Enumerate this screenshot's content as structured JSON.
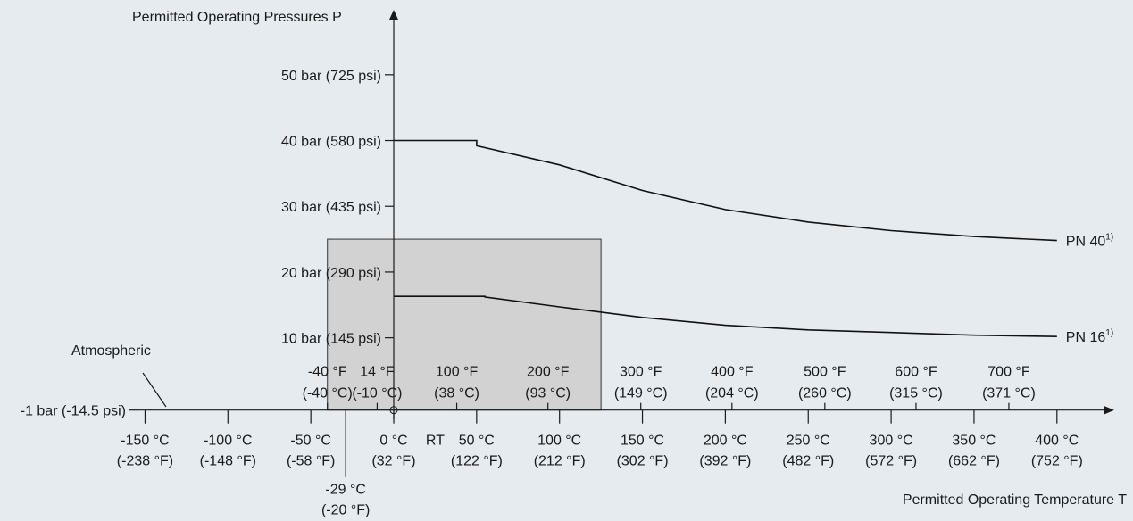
{
  "chart_data": {
    "type": "line",
    "title": "",
    "ylabel": "Permitted Operating Pressures P",
    "xlabel": "Permitted Operating Temperature T",
    "y_tick_values": [
      -1,
      10,
      20,
      30,
      40,
      50
    ],
    "y_tick_labels": [
      "-1 bar (-14.5 psi)",
      "10 bar (145 psi)",
      "20 bar (290 psi)",
      "30 bar (435 psi)",
      "40 bar (580 psi)",
      "50 bar (725 psi)"
    ],
    "x_celsius_ticks": [
      {
        "value": -150,
        "c": "-150 °C",
        "f": "(-238 °F)"
      },
      {
        "value": -100,
        "c": "-100 °C",
        "f": "(-148 °F)"
      },
      {
        "value": -50,
        "c": "-50 °C",
        "f": "(-58 °F)"
      },
      {
        "value": 0,
        "c": "0 °C",
        "f": "(32 °F)"
      },
      {
        "value": 50,
        "c": "50 °C",
        "f": "(122 °F)"
      },
      {
        "value": 100,
        "c": "100 °C",
        "f": "(212 °F)"
      },
      {
        "value": 150,
        "c": "150 °C",
        "f": "(302 °F)"
      },
      {
        "value": 200,
        "c": "200 °C",
        "f": "(392 °F)"
      },
      {
        "value": 250,
        "c": "250 °C",
        "f": "(482 °F)"
      },
      {
        "value": 300,
        "c": "300 °C",
        "f": "(572 °F)"
      },
      {
        "value": 350,
        "c": "350 °C",
        "f": "(662 °F)"
      },
      {
        "value": 400,
        "c": "400 °C",
        "f": "(752 °F)"
      }
    ],
    "x_fahrenheit_ticks": [
      {
        "value": -40,
        "f": "-40 °F",
        "c": "(-40 °C)"
      },
      {
        "value": -10,
        "f": "14 °F",
        "c": "(-10 °C)"
      },
      {
        "value": 38,
        "f": "100 °F",
        "c": "(38 °C)"
      },
      {
        "value": 93,
        "f": "200 °F",
        "c": "(93 °C)"
      },
      {
        "value": 149,
        "f": "300 °F",
        "c": "(149 °C)"
      },
      {
        "value": 204,
        "f": "400 °F",
        "c": "(204 °C)"
      },
      {
        "value": 260,
        "f": "500 °F",
        "c": "(260 °C)"
      },
      {
        "value": 315,
        "f": "600 °F",
        "c": "(315 °C)"
      },
      {
        "value": 371,
        "f": "700 °F",
        "c": "(371 °C)"
      }
    ],
    "rt_label": "RT",
    "rt_value": 25,
    "min_temp": {
      "value": -29,
      "c": "-29 °C",
      "f": "(-20 °F)"
    },
    "atmospheric_label": "Atmospheric",
    "shaded_region": {
      "x": [
        -40,
        125
      ],
      "y": [
        -1,
        25
      ],
      "color": "#d2d2d2"
    },
    "series": [
      {
        "name": "PN 40",
        "footnote": "1)",
        "x": [
          0,
          50,
          50,
          100,
          150,
          200,
          250,
          300,
          350,
          400
        ],
        "y": [
          40,
          40,
          39.2,
          36.3,
          32.4,
          29.5,
          27.6,
          26.3,
          25.4,
          24.8
        ]
      },
      {
        "name": "PN 16",
        "footnote": "1)",
        "x": [
          0,
          55,
          55,
          100,
          150,
          200,
          250,
          300,
          350,
          400
        ],
        "y": [
          16.3,
          16.3,
          16.2,
          14.7,
          13.1,
          11.9,
          11.2,
          10.8,
          10.4,
          10.2
        ]
      }
    ]
  }
}
